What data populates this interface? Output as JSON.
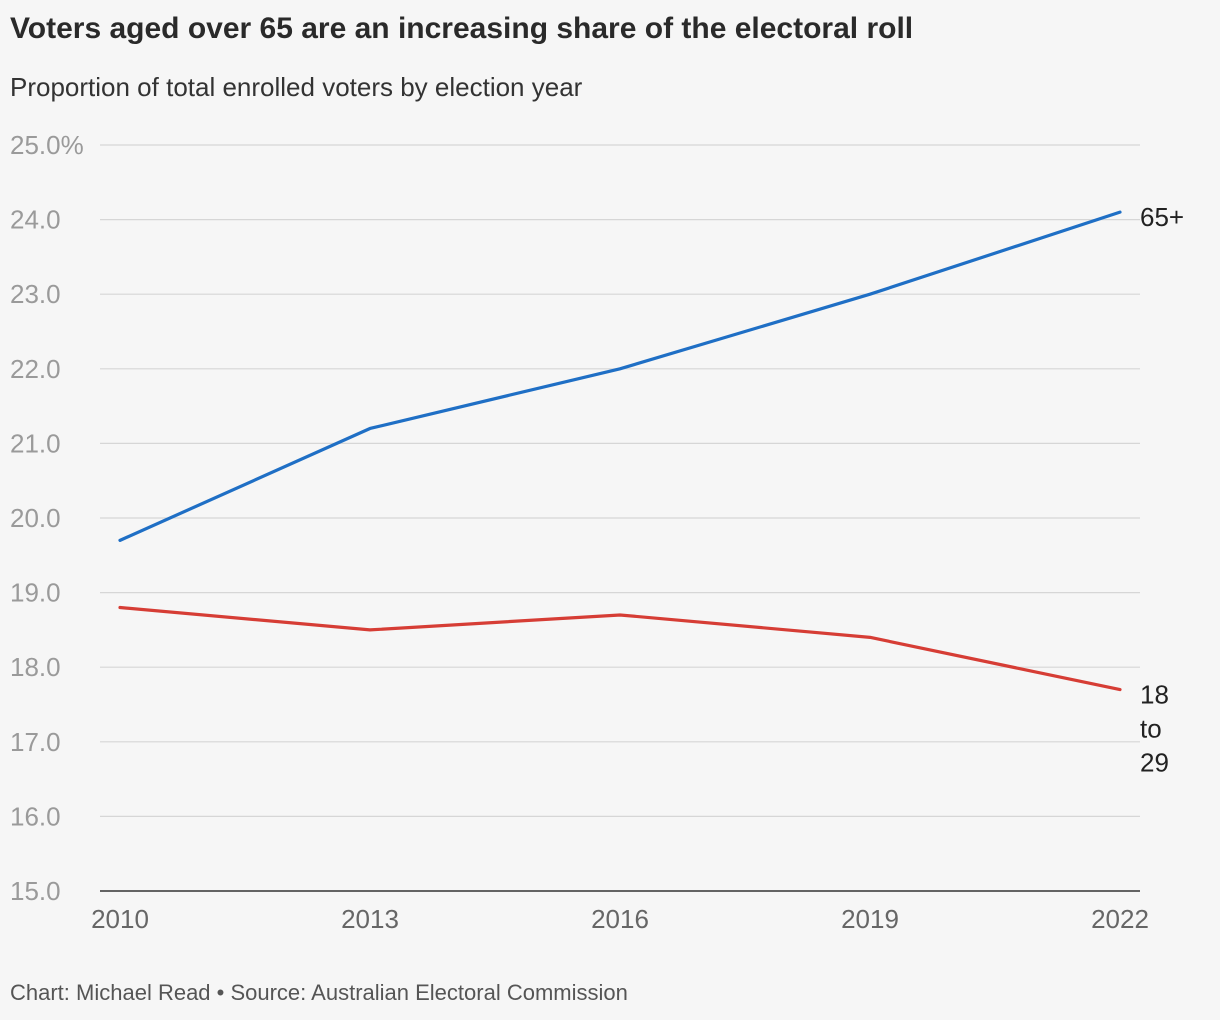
{
  "chart_data": {
    "type": "line",
    "title": "Voters aged over 65 are an increasing share of the electoral roll",
    "subtitle": "Proportion of total enrolled voters by election year",
    "x": [
      "2010",
      "2013",
      "2016",
      "2019",
      "2022"
    ],
    "ylim": [
      15.0,
      25.0
    ],
    "yticks": [
      {
        "value": 15.0,
        "label": "15.0"
      },
      {
        "value": 16.0,
        "label": "16.0"
      },
      {
        "value": 17.0,
        "label": "17.0"
      },
      {
        "value": 18.0,
        "label": "18.0"
      },
      {
        "value": 19.0,
        "label": "19.0"
      },
      {
        "value": 20.0,
        "label": "20.0"
      },
      {
        "value": 21.0,
        "label": "21.0"
      },
      {
        "value": 22.0,
        "label": "22.0"
      },
      {
        "value": 23.0,
        "label": "23.0"
      },
      {
        "value": 24.0,
        "label": "24.0"
      },
      {
        "value": 25.0,
        "label": "25.0%"
      }
    ],
    "grid": true,
    "series": [
      {
        "name": "65+",
        "label_lines": [
          "65+"
        ],
        "color": "#1f6fc5",
        "values": [
          19.7,
          21.2,
          22.0,
          23.0,
          24.1
        ]
      },
      {
        "name": "18 to 29",
        "label_lines": [
          "18",
          "to",
          "29"
        ],
        "color": "#d63d35",
        "values": [
          18.8,
          18.5,
          18.7,
          18.4,
          17.7
        ]
      }
    ]
  },
  "footer": "Chart: Michael Read • Source: Australian Electoral Commission"
}
